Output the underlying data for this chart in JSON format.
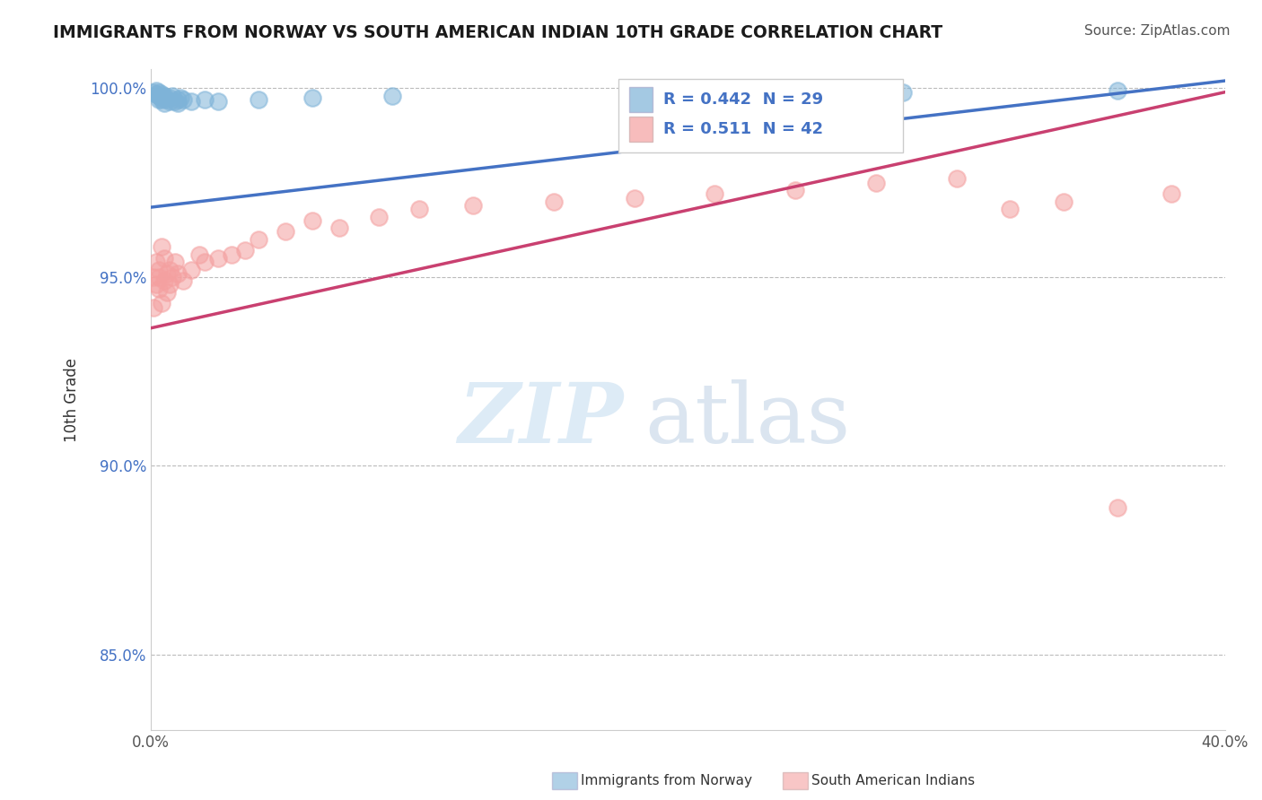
{
  "title": "IMMIGRANTS FROM NORWAY VS SOUTH AMERICAN INDIAN 10TH GRADE CORRELATION CHART",
  "source_text": "Source: ZipAtlas.com",
  "xlabel_norway": "Immigrants from Norway",
  "xlabel_sai": "South American Indians",
  "ylabel": "10th Grade",
  "xlim": [
    0.0,
    0.4
  ],
  "ylim": [
    0.83,
    1.005
  ],
  "ytick_positions": [
    0.85,
    0.9,
    0.95,
    1.0
  ],
  "ytick_labels": [
    "85.0%",
    "90.0%",
    "95.0%",
    "100.0%"
  ],
  "norway_R": 0.442,
  "norway_N": 29,
  "sai_R": 0.511,
  "sai_N": 42,
  "norway_color": "#7EB3D8",
  "sai_color": "#F4A0A0",
  "norway_line_color": "#4472C4",
  "sai_line_color": "#C94070",
  "background_color": "#FFFFFF",
  "norway_line_x0": 0.0,
  "norway_line_y0": 0.9685,
  "norway_line_x1": 0.4,
  "norway_line_y1": 1.002,
  "sai_line_x0": 0.0,
  "sai_line_y0": 0.9365,
  "sai_line_x1": 0.4,
  "sai_line_y1": 0.999,
  "norway_x": [
    0.001,
    0.002,
    0.002,
    0.003,
    0.003,
    0.003,
    0.004,
    0.004,
    0.004,
    0.005,
    0.005,
    0.005,
    0.006,
    0.007,
    0.007,
    0.008,
    0.009,
    0.01,
    0.01,
    0.011,
    0.012,
    0.015,
    0.02,
    0.025,
    0.04,
    0.06,
    0.09,
    0.28,
    0.36
  ],
  "norway_y": [
    0.999,
    0.9995,
    0.9985,
    0.999,
    0.998,
    0.997,
    0.9975,
    0.9985,
    0.997,
    0.998,
    0.9975,
    0.996,
    0.997,
    0.9965,
    0.9975,
    0.998,
    0.9965,
    0.997,
    0.996,
    0.9975,
    0.997,
    0.9965,
    0.997,
    0.9965,
    0.997,
    0.9975,
    0.998,
    0.999,
    0.9995
  ],
  "sai_x": [
    0.001,
    0.001,
    0.002,
    0.002,
    0.003,
    0.003,
    0.003,
    0.004,
    0.004,
    0.005,
    0.005,
    0.006,
    0.006,
    0.007,
    0.007,
    0.008,
    0.009,
    0.01,
    0.012,
    0.015,
    0.018,
    0.02,
    0.025,
    0.03,
    0.035,
    0.04,
    0.05,
    0.06,
    0.07,
    0.085,
    0.1,
    0.12,
    0.15,
    0.18,
    0.21,
    0.24,
    0.27,
    0.3,
    0.32,
    0.34,
    0.36,
    0.38
  ],
  "sai_y": [
    0.95,
    0.942,
    0.948,
    0.954,
    0.952,
    0.95,
    0.947,
    0.958,
    0.943,
    0.949,
    0.955,
    0.951,
    0.946,
    0.952,
    0.948,
    0.95,
    0.954,
    0.951,
    0.949,
    0.952,
    0.956,
    0.954,
    0.955,
    0.956,
    0.957,
    0.96,
    0.962,
    0.965,
    0.963,
    0.966,
    0.968,
    0.969,
    0.97,
    0.971,
    0.972,
    0.973,
    0.975,
    0.976,
    0.968,
    0.97,
    0.889,
    0.972
  ]
}
